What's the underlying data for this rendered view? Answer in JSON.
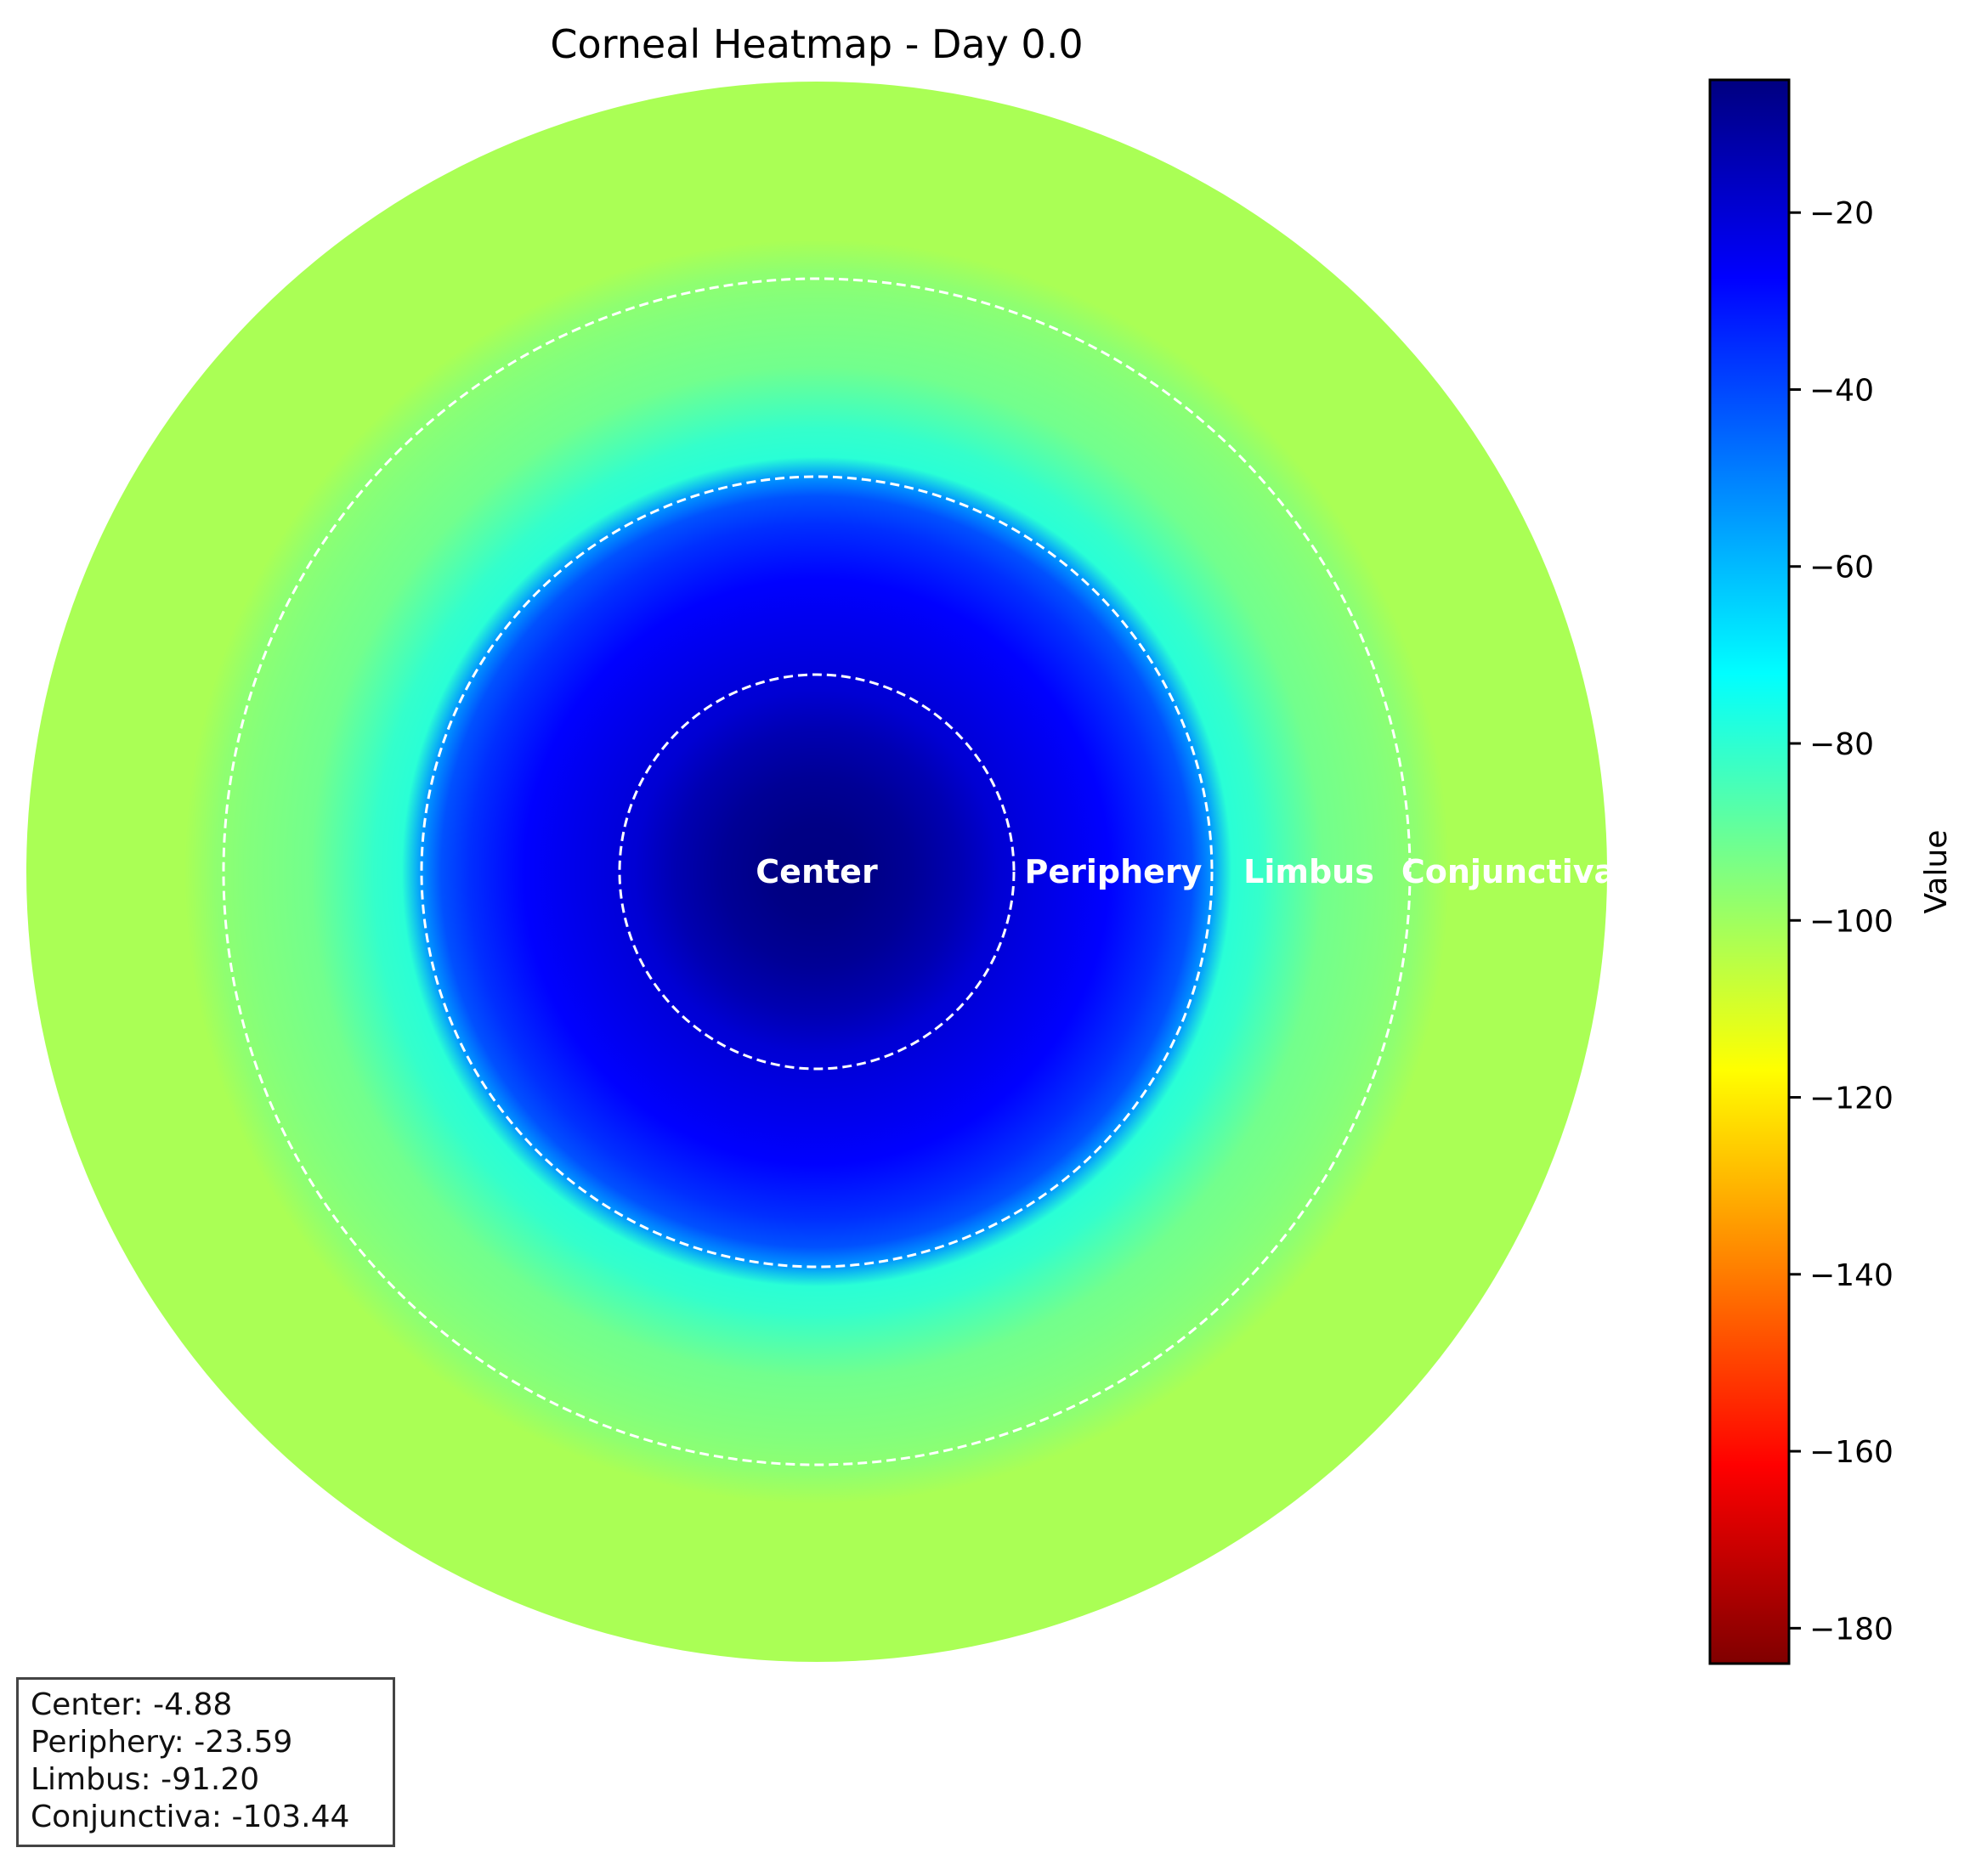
{
  "chart_data": {
    "type": "heatmap",
    "title": "Corneal Heatmap - Day 0.0",
    "colormap": "jet (reversed)",
    "colorbar": {
      "label": "Value",
      "min": -184,
      "max": -5,
      "ticks": [
        -20,
        -40,
        -60,
        -80,
        -100,
        -120,
        -140,
        -160,
        -180
      ],
      "tick_labels": [
        "−20",
        "−40",
        "−60",
        "−80",
        "−100",
        "−120",
        "−140",
        "−160",
        "−180"
      ]
    },
    "zones": [
      {
        "name": "Center",
        "value": -4.88
      },
      {
        "name": "Periphery",
        "value": -23.59
      },
      {
        "name": "Limbus",
        "value": -91.2
      },
      {
        "name": "Conjunctiva",
        "value": -103.44
      }
    ],
    "zone_labels": [
      "Center",
      "Periphery",
      "Limbus",
      "Conjunctiva"
    ],
    "stats_lines": [
      "Center: -4.88",
      "Periphery: -23.59",
      "Limbus: -91.20",
      "Conjunctiva: -103.44"
    ]
  }
}
